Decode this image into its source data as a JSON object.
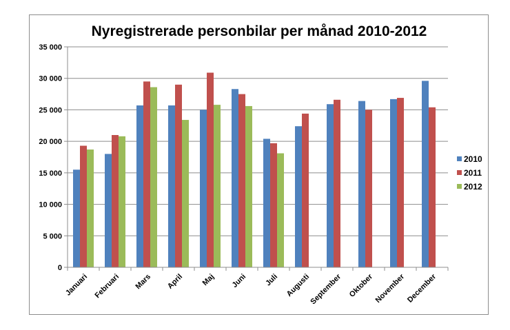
{
  "chart_data": {
    "type": "bar",
    "title": "Nyregistrerade personbilar per månad 2010-2012",
    "xlabel": "",
    "ylabel": "",
    "ylim": [
      0,
      35000
    ],
    "yticks": [
      "0",
      "5 000",
      "10 000",
      "15 000",
      "20 000",
      "25 000",
      "30 000",
      "35 000"
    ],
    "ytick_values": [
      0,
      5000,
      10000,
      15000,
      20000,
      25000,
      30000,
      35000
    ],
    "grid": true,
    "legend_position": "right",
    "categories": [
      "Januari",
      "Februari",
      "Mars",
      "April",
      "Maj",
      "Juni",
      "Juli",
      "Augusti",
      "September",
      "Oktober",
      "November",
      "December"
    ],
    "series": [
      {
        "name": "2010",
        "color": "#4f81bd",
        "values": [
          15500,
          18000,
          25700,
          25700,
          25000,
          28300,
          20400,
          22400,
          25900,
          26400,
          26700,
          29600
        ]
      },
      {
        "name": "2011",
        "color": "#c0504d",
        "values": [
          19300,
          21000,
          29500,
          29000,
          30900,
          27500,
          19700,
          24400,
          26600,
          25000,
          26900,
          25400
        ]
      },
      {
        "name": "2012",
        "color": "#9bbb59",
        "values": [
          18700,
          20800,
          28600,
          23400,
          25800,
          25600,
          18100,
          null,
          null,
          null,
          null,
          null
        ]
      }
    ]
  }
}
